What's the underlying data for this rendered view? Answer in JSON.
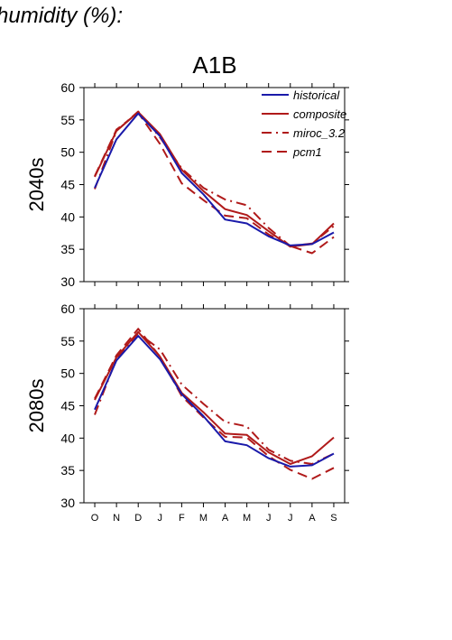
{
  "heading": "humidity (%):",
  "chart_data": {
    "type": "line",
    "title": "A1B",
    "categories": [
      "O",
      "N",
      "D",
      "J",
      "F",
      "M",
      "A",
      "M",
      "J",
      "J",
      "A",
      "S"
    ],
    "ylim": [
      30,
      60
    ],
    "yticks": [
      30,
      35,
      40,
      45,
      50,
      55,
      60
    ],
    "grid": false,
    "legend_position": "top-right",
    "legend": [
      {
        "name": "historical",
        "color": "#1a1aaa",
        "style": "solid"
      },
      {
        "name": "composite",
        "color": "#b01a1a",
        "style": "solid"
      },
      {
        "name": "miroc_3.2",
        "color": "#b01a1a",
        "style": "dashdot"
      },
      {
        "name": "pcm1",
        "color": "#b01a1a",
        "style": "dashed"
      }
    ],
    "panels": [
      {
        "label": "2040s",
        "series": [
          {
            "name": "historical",
            "values": [
              44.5,
              52.0,
              56.0,
              52.5,
              46.8,
              43.5,
              39.6,
              39.0,
              37.0,
              35.6,
              35.8,
              37.6
            ]
          },
          {
            "name": "composite",
            "values": [
              46.2,
              53.3,
              56.2,
              52.8,
              47.3,
              44.0,
              41.2,
              40.3,
              37.8,
              35.4,
              35.8,
              39.0
            ]
          },
          {
            "name": "miroc_3.2",
            "values": [
              44.3,
              53.3,
              56.3,
              52.3,
              47.5,
              44.5,
              42.7,
              41.8,
              38.3,
              35.5,
              35.9,
              38.6
            ]
          },
          {
            "name": "pcm1",
            "values": [
              46.3,
              53.5,
              56.1,
              51.3,
              45.2,
              42.6,
              40.2,
              39.8,
              37.3,
              35.5,
              34.4,
              36.9
            ]
          }
        ]
      },
      {
        "label": "2080s",
        "series": [
          {
            "name": "historical",
            "values": [
              44.4,
              52.0,
              55.8,
              52.2,
              46.8,
              43.4,
              39.5,
              38.9,
              36.9,
              35.6,
              35.8,
              37.6
            ]
          },
          {
            "name": "composite",
            "values": [
              45.9,
              52.5,
              56.4,
              52.6,
              47.0,
              44.0,
              40.7,
              40.5,
              37.8,
              36.0,
              37.2,
              40.1
            ]
          },
          {
            "name": "miroc_3.2",
            "values": [
              43.6,
              52.3,
              56.2,
              53.7,
              48.3,
              45.3,
              42.5,
              41.8,
              38.2,
              36.5,
              36.0,
              37.6
            ]
          },
          {
            "name": "pcm1",
            "values": [
              46.1,
              52.8,
              56.9,
              52.6,
              46.5,
              43.2,
              40.2,
              40.1,
              37.2,
              35.1,
              33.7,
              35.4
            ]
          }
        ]
      }
    ]
  }
}
